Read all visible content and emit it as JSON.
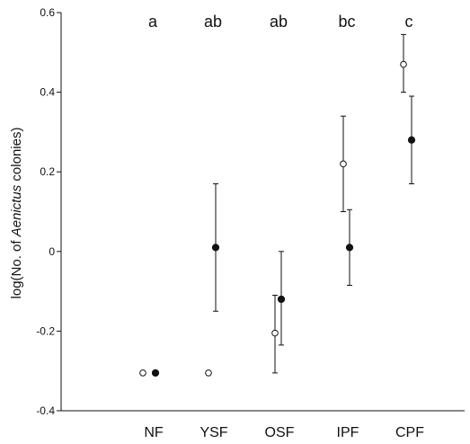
{
  "chart_data": {
    "type": "scatter",
    "ylabel_parts": [
      "log(No. of ",
      "Aenictus",
      " colonies)"
    ],
    "ylim": [
      -0.4,
      0.6
    ],
    "yticks": [
      {
        "value": 0.6,
        "label": "0.6"
      },
      {
        "value": 0.4,
        "label": "0.4"
      },
      {
        "value": 0.2,
        "label": "0.2"
      },
      {
        "value": 0.0,
        "label": "0"
      },
      {
        "value": -0.2,
        "label": "-0.2"
      },
      {
        "value": -0.4,
        "label": "-0.4"
      }
    ],
    "categories": [
      "NF",
      "YSF",
      "OSF",
      "IPF",
      "CPF"
    ],
    "significance_letters": [
      "a",
      "ab",
      "ab",
      "bc",
      "c"
    ],
    "series": [
      {
        "marker": "open-circle",
        "points": [
          {
            "category": "NF",
            "value": -0.305,
            "lower": null,
            "upper": null
          },
          {
            "category": "YSF",
            "value": -0.305,
            "lower": null,
            "upper": null
          },
          {
            "category": "OSF",
            "value": -0.205,
            "lower": -0.305,
            "upper": -0.11
          },
          {
            "category": "IPF",
            "value": 0.22,
            "lower": 0.1,
            "upper": 0.34
          },
          {
            "category": "CPF",
            "value": 0.47,
            "lower": 0.4,
            "upper": 0.545
          }
        ]
      },
      {
        "marker": "filled-circle",
        "points": [
          {
            "category": "NF",
            "value": -0.305,
            "lower": null,
            "upper": null
          },
          {
            "category": "YSF",
            "value": 0.01,
            "lower": -0.15,
            "upper": 0.17
          },
          {
            "category": "OSF",
            "value": -0.12,
            "lower": -0.235,
            "upper": 0.0
          },
          {
            "category": "IPF",
            "value": 0.01,
            "lower": -0.085,
            "upper": 0.105
          },
          {
            "category": "CPF",
            "value": 0.28,
            "lower": 0.17,
            "upper": 0.39
          }
        ]
      }
    ],
    "grid": false,
    "legend": "none"
  }
}
